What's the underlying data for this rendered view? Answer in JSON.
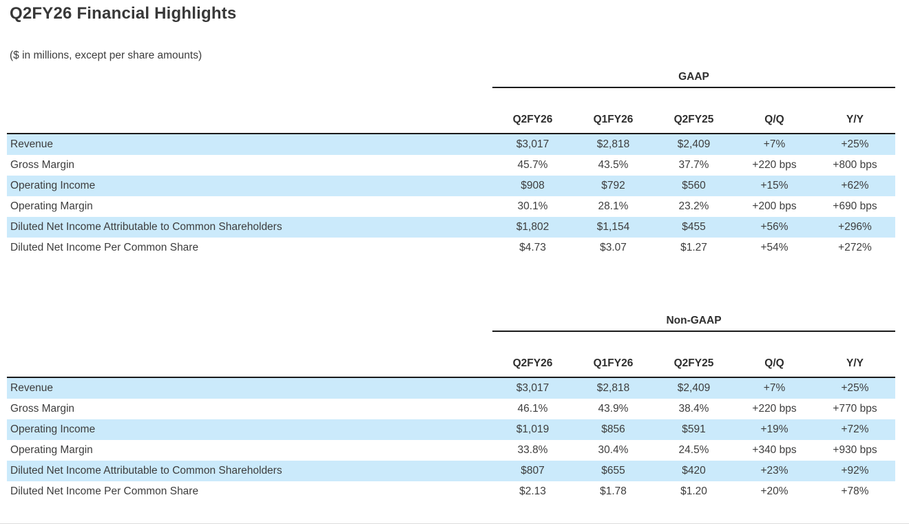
{
  "page": {
    "title": "Q2FY26 Financial Highlights",
    "subtitle": "($ in millions, except per share amounts)"
  },
  "columns": [
    "Q2FY26",
    "Q1FY26",
    "Q2FY25",
    "Q/Q",
    "Y/Y"
  ],
  "tables": [
    {
      "section": "GAAP",
      "rows": [
        {
          "label": "Revenue",
          "values": [
            "$3,017",
            "$2,818",
            "$2,409",
            "+7%",
            "+25%"
          ]
        },
        {
          "label": "Gross Margin",
          "values": [
            "45.7%",
            "43.5%",
            "37.7%",
            "+220 bps",
            "+800 bps"
          ]
        },
        {
          "label": "Operating Income",
          "values": [
            "$908",
            "$792",
            "$560",
            "+15%",
            "+62%"
          ]
        },
        {
          "label": "Operating Margin",
          "values": [
            "30.1%",
            "28.1%",
            "23.2%",
            "+200 bps",
            "+690 bps"
          ]
        },
        {
          "label": "Diluted Net Income Attributable to Common Shareholders",
          "values": [
            "$1,802",
            "$1,154",
            "$455",
            "+56%",
            "+296%"
          ]
        },
        {
          "label": "Diluted Net Income Per Common Share",
          "values": [
            "$4.73",
            "$3.07",
            "$1.27",
            "+54%",
            "+272%"
          ]
        }
      ]
    },
    {
      "section": "Non-GAAP",
      "rows": [
        {
          "label": "Revenue",
          "values": [
            "$3,017",
            "$2,818",
            "$2,409",
            "+7%",
            "+25%"
          ]
        },
        {
          "label": "Gross Margin",
          "values": [
            "46.1%",
            "43.9%",
            "38.4%",
            "+220 bps",
            "+770 bps"
          ]
        },
        {
          "label": "Operating Income",
          "values": [
            "$1,019",
            "$856",
            "$591",
            "+19%",
            "+72%"
          ]
        },
        {
          "label": "Operating Margin",
          "values": [
            "33.8%",
            "30.4%",
            "24.5%",
            "+340 bps",
            "+930 bps"
          ]
        },
        {
          "label": "Diluted Net Income Attributable to Common Shareholders",
          "values": [
            "$807",
            "$655",
            "$420",
            "+23%",
            "+92%"
          ]
        },
        {
          "label": "Diluted Net Income Per Common Share",
          "values": [
            "$2.13",
            "$1.78",
            "$1.20",
            "+20%",
            "+78%"
          ]
        }
      ]
    }
  ],
  "colors": {
    "row_highlight": "#cbeafb",
    "rule": "#1a1a1a",
    "text": "#3d3d3d",
    "bottom_divider": "#dcdcdc"
  }
}
